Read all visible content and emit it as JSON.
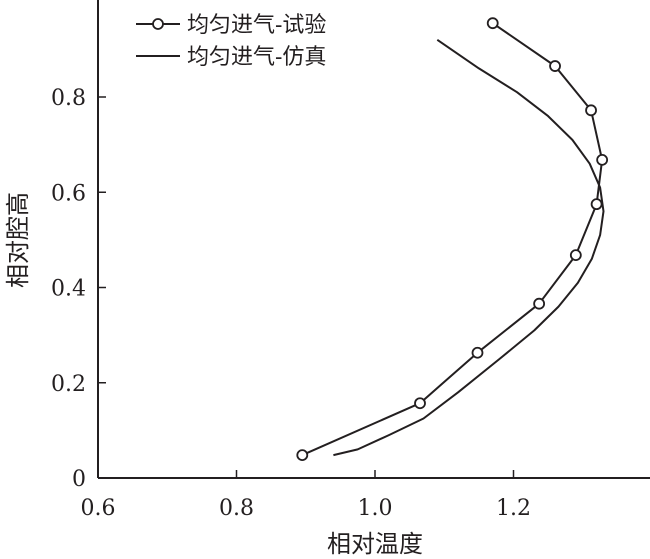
{
  "chart_data": {
    "type": "line",
    "xlabel": "相对温度",
    "ylabel": "相对腔高",
    "xlim": [
      0.6,
      1.4
    ],
    "ylim": [
      0,
      1.0
    ],
    "xticks": [
      "0.6",
      "0.8",
      "1.0",
      "1.2"
    ],
    "yticks": [
      "0",
      "0.2",
      "0.4",
      "0.6",
      "0.8"
    ],
    "xtick_values": [
      0.6,
      0.8,
      1.0,
      1.2
    ],
    "ytick_values": [
      0,
      0.2,
      0.4,
      0.6,
      0.8
    ],
    "legend_position": "top-left",
    "series": [
      {
        "name": "均匀进气-试验",
        "style": "line-circle-markers",
        "color": "#231f20",
        "points": [
          [
            0.895,
            0.048
          ],
          [
            1.065,
            0.157
          ],
          [
            1.148,
            0.263
          ],
          [
            1.237,
            0.366
          ],
          [
            1.29,
            0.468
          ],
          [
            1.32,
            0.575
          ],
          [
            1.328,
            0.668
          ],
          [
            1.312,
            0.772
          ],
          [
            1.26,
            0.865
          ],
          [
            1.17,
            0.955
          ]
        ]
      },
      {
        "name": "均匀进气-仿真",
        "style": "line",
        "color": "#231f20",
        "points": [
          [
            0.94,
            0.048
          ],
          [
            0.975,
            0.06
          ],
          [
            1.02,
            0.09
          ],
          [
            1.07,
            0.125
          ],
          [
            1.12,
            0.18
          ],
          [
            1.18,
            0.25
          ],
          [
            1.23,
            0.31
          ],
          [
            1.265,
            0.36
          ],
          [
            1.293,
            0.41
          ],
          [
            1.313,
            0.46
          ],
          [
            1.325,
            0.51
          ],
          [
            1.33,
            0.56
          ],
          [
            1.325,
            0.61
          ],
          [
            1.31,
            0.66
          ],
          [
            1.285,
            0.71
          ],
          [
            1.25,
            0.76
          ],
          [
            1.205,
            0.81
          ],
          [
            1.15,
            0.86
          ],
          [
            1.09,
            0.92
          ]
        ]
      }
    ]
  }
}
